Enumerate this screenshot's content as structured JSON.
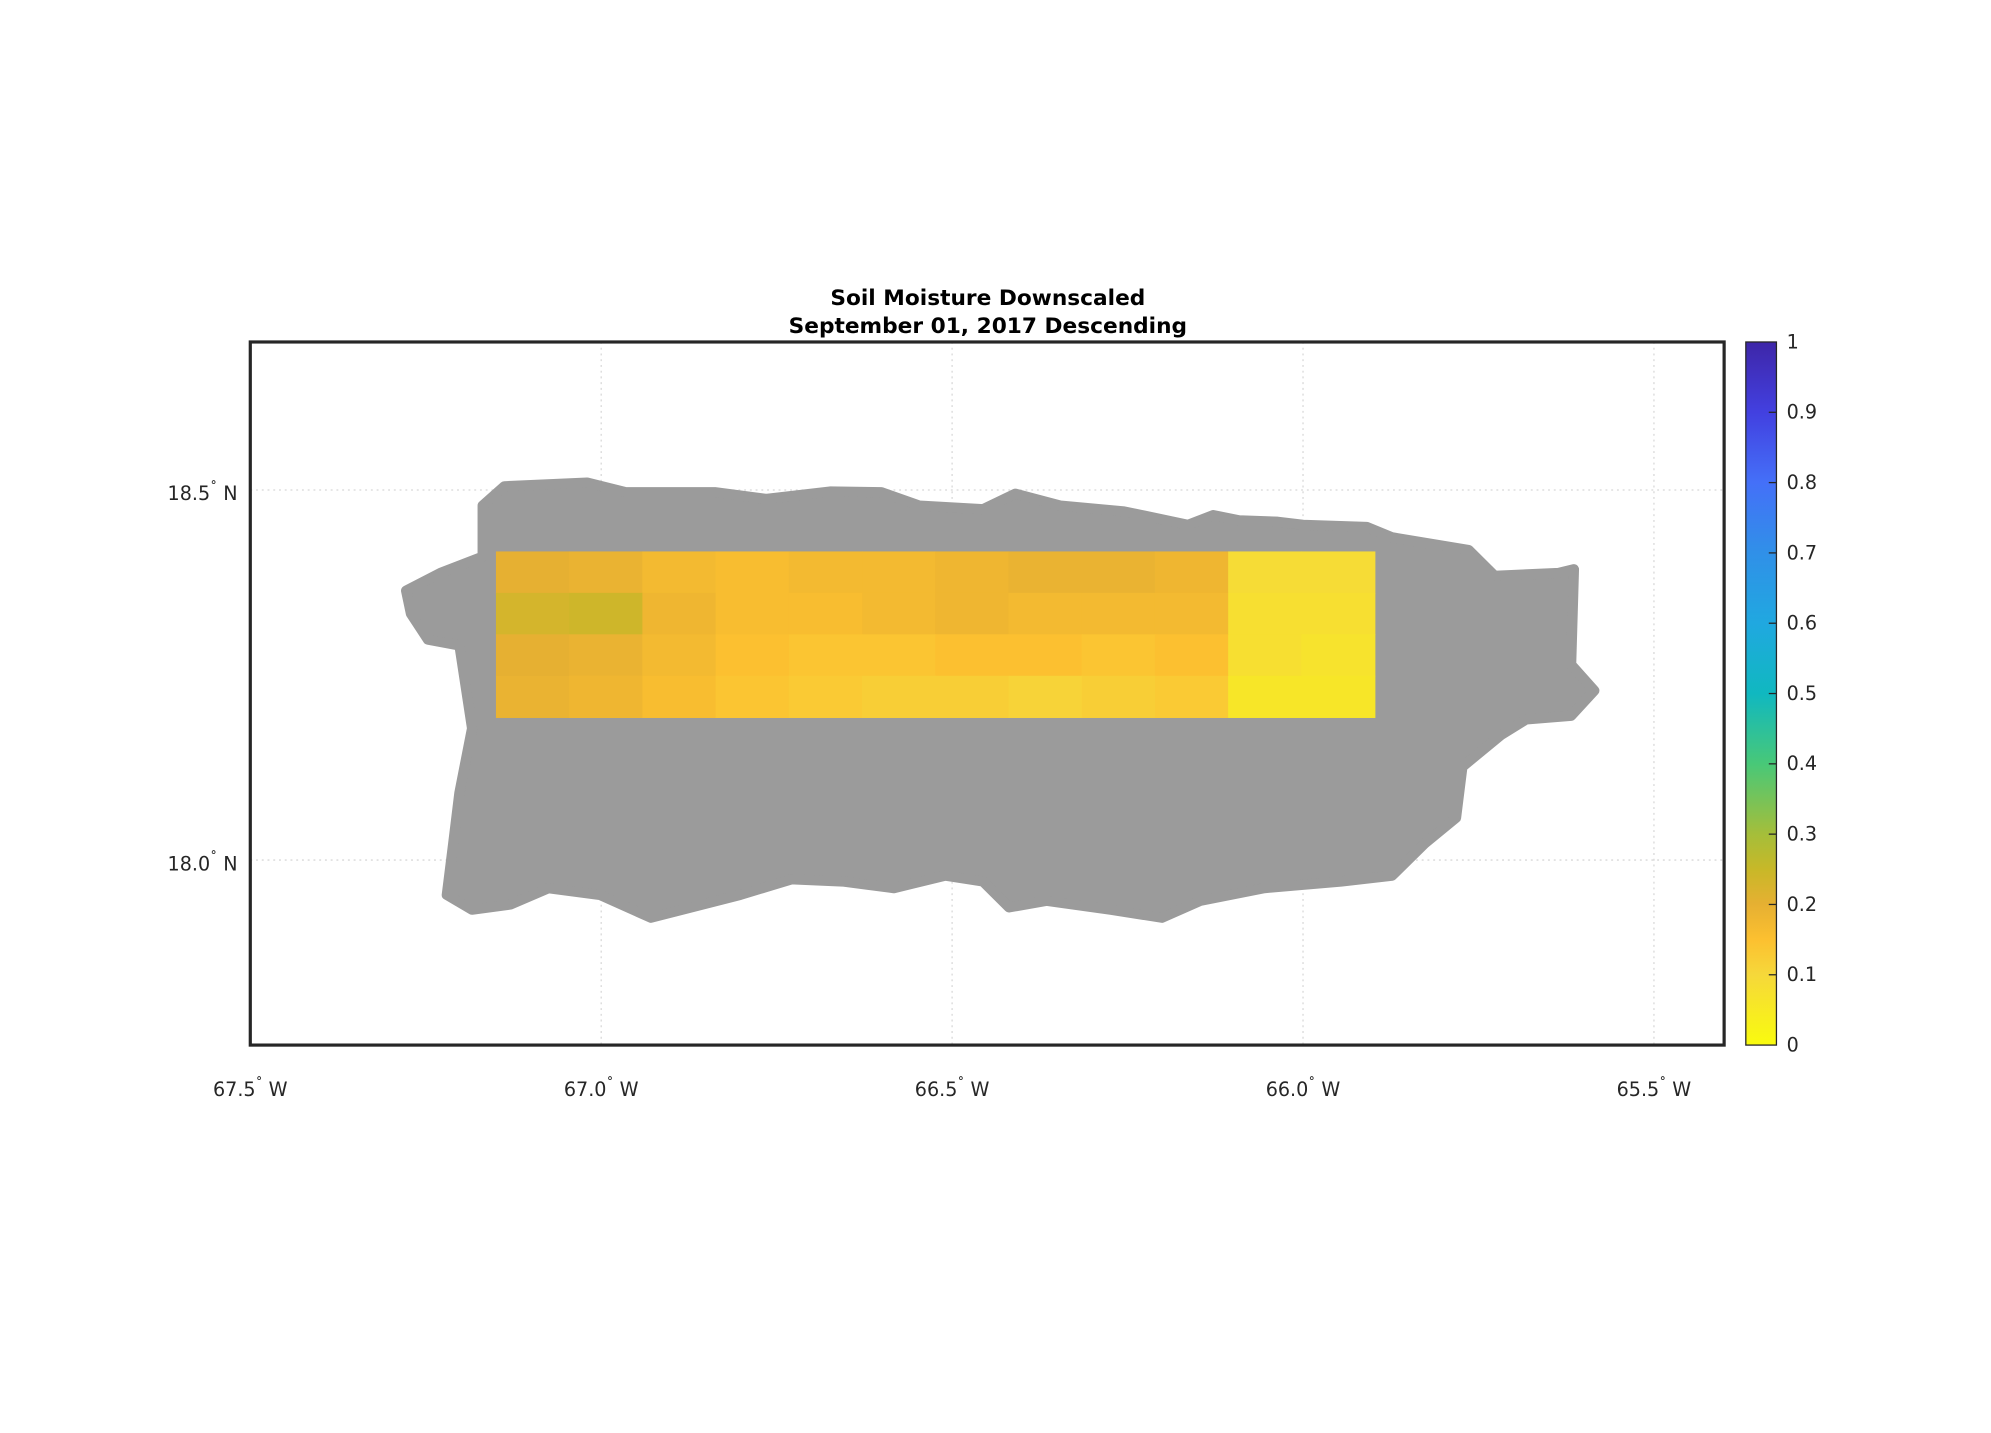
{
  "chart_data": {
    "type": "heatmap",
    "title": "Soil Moisture Downscaled",
    "subtitle": "September 01, 2017 Descending",
    "xlim": [
      -67.5,
      -65.4
    ],
    "ylim": [
      17.75,
      18.7
    ],
    "grid": true,
    "x_ticks": [
      {
        "value": -67.5,
        "label": "67.5",
        "suffix": " W"
      },
      {
        "value": -67.0,
        "label": "67.0",
        "suffix": " W"
      },
      {
        "value": -66.5,
        "label": "66.5",
        "suffix": " W"
      },
      {
        "value": -66.0,
        "label": "66.0",
        "suffix": " W"
      },
      {
        "value": -65.5,
        "label": "65.5",
        "suffix": " W"
      }
    ],
    "y_ticks": [
      {
        "value": 18.5,
        "label": "18.5",
        "suffix": " N"
      },
      {
        "value": 18.0,
        "label": "18.0",
        "suffix": " N"
      }
    ],
    "degree_symbol": "˚",
    "land_color": "#9b9b9b",
    "land_outline_lonlat": [
      [
        -67.278,
        18.364
      ],
      [
        -67.229,
        18.388
      ],
      [
        -67.169,
        18.41
      ],
      [
        -67.169,
        18.479
      ],
      [
        -67.138,
        18.505
      ],
      [
        -67.02,
        18.51
      ],
      [
        -66.965,
        18.497
      ],
      [
        -66.838,
        18.497
      ],
      [
        -66.765,
        18.488
      ],
      [
        -66.674,
        18.498
      ],
      [
        -66.601,
        18.497
      ],
      [
        -66.547,
        18.479
      ],
      [
        -66.456,
        18.474
      ],
      [
        -66.41,
        18.495
      ],
      [
        -66.346,
        18.479
      ],
      [
        -66.255,
        18.471
      ],
      [
        -66.164,
        18.453
      ],
      [
        -66.128,
        18.466
      ],
      [
        -66.091,
        18.459
      ],
      [
        -66.036,
        18.457
      ],
      [
        -66.0,
        18.453
      ],
      [
        -65.909,
        18.45
      ],
      [
        -65.873,
        18.436
      ],
      [
        -65.764,
        18.419
      ],
      [
        -65.727,
        18.384
      ],
      [
        -65.636,
        18.388
      ],
      [
        -65.614,
        18.393
      ],
      [
        -65.618,
        18.264
      ],
      [
        -65.585,
        18.229
      ],
      [
        -65.618,
        18.195
      ],
      [
        -65.682,
        18.19
      ],
      [
        -65.718,
        18.169
      ],
      [
        -65.773,
        18.126
      ],
      [
        -65.782,
        18.057
      ],
      [
        -65.827,
        18.022
      ],
      [
        -65.873,
        17.979
      ],
      [
        -65.946,
        17.971
      ],
      [
        -66.055,
        17.962
      ],
      [
        -66.146,
        17.945
      ],
      [
        -66.201,
        17.922
      ],
      [
        -66.274,
        17.933
      ],
      [
        -66.365,
        17.945
      ],
      [
        -66.419,
        17.936
      ],
      [
        -66.456,
        17.971
      ],
      [
        -66.51,
        17.979
      ],
      [
        -66.583,
        17.962
      ],
      [
        -66.656,
        17.971
      ],
      [
        -66.729,
        17.974
      ],
      [
        -66.802,
        17.953
      ],
      [
        -66.929,
        17.922
      ],
      [
        -67.002,
        17.953
      ],
      [
        -67.075,
        17.962
      ],
      [
        -67.129,
        17.94
      ],
      [
        -67.184,
        17.933
      ],
      [
        -67.22,
        17.953
      ],
      [
        -67.211,
        18.022
      ],
      [
        -67.202,
        18.091
      ],
      [
        -67.184,
        18.178
      ],
      [
        -67.202,
        18.29
      ],
      [
        -67.247,
        18.298
      ],
      [
        -67.271,
        18.333
      ]
    ],
    "raster": {
      "lon_range": [
        -67.15,
        -65.898
      ],
      "lat_range": [
        18.193,
        18.417
      ],
      "values": [
        [
          0.2,
          0.19,
          0.17,
          0.16,
          0.17,
          0.17,
          0.18,
          0.19,
          0.19,
          0.18,
          0.09,
          0.09
        ],
        [
          0.23,
          0.24,
          0.18,
          0.16,
          0.16,
          0.17,
          0.18,
          0.17,
          0.17,
          0.17,
          0.08,
          0.08
        ],
        [
          0.2,
          0.19,
          0.17,
          0.15,
          0.14,
          0.14,
          0.15,
          0.15,
          0.14,
          0.15,
          0.08,
          0.07
        ],
        [
          0.19,
          0.18,
          0.16,
          0.14,
          0.13,
          0.12,
          0.12,
          0.11,
          0.12,
          0.13,
          0.06,
          0.06
        ]
      ]
    },
    "colorbar": {
      "range": [
        0,
        1
      ],
      "ticks": [
        "0",
        "0.1",
        "0.2",
        "0.3",
        "0.4",
        "0.5",
        "0.6",
        "0.7",
        "0.8",
        "0.9",
        "1"
      ],
      "colormap": [
        [
          0.0,
          "#f9fb0e"
        ],
        [
          0.1,
          "#f6d83a"
        ],
        [
          0.15,
          "#fcc030"
        ],
        [
          0.2,
          "#e6b032"
        ],
        [
          0.25,
          "#c8b828"
        ],
        [
          0.3,
          "#a5be3a"
        ],
        [
          0.4,
          "#48c878"
        ],
        [
          0.5,
          "#10b8c0"
        ],
        [
          0.6,
          "#20a8e0"
        ],
        [
          0.7,
          "#3090e8"
        ],
        [
          0.8,
          "#4470f8"
        ],
        [
          0.9,
          "#4240e0"
        ],
        [
          1.0,
          "#3e26a8"
        ]
      ]
    }
  }
}
